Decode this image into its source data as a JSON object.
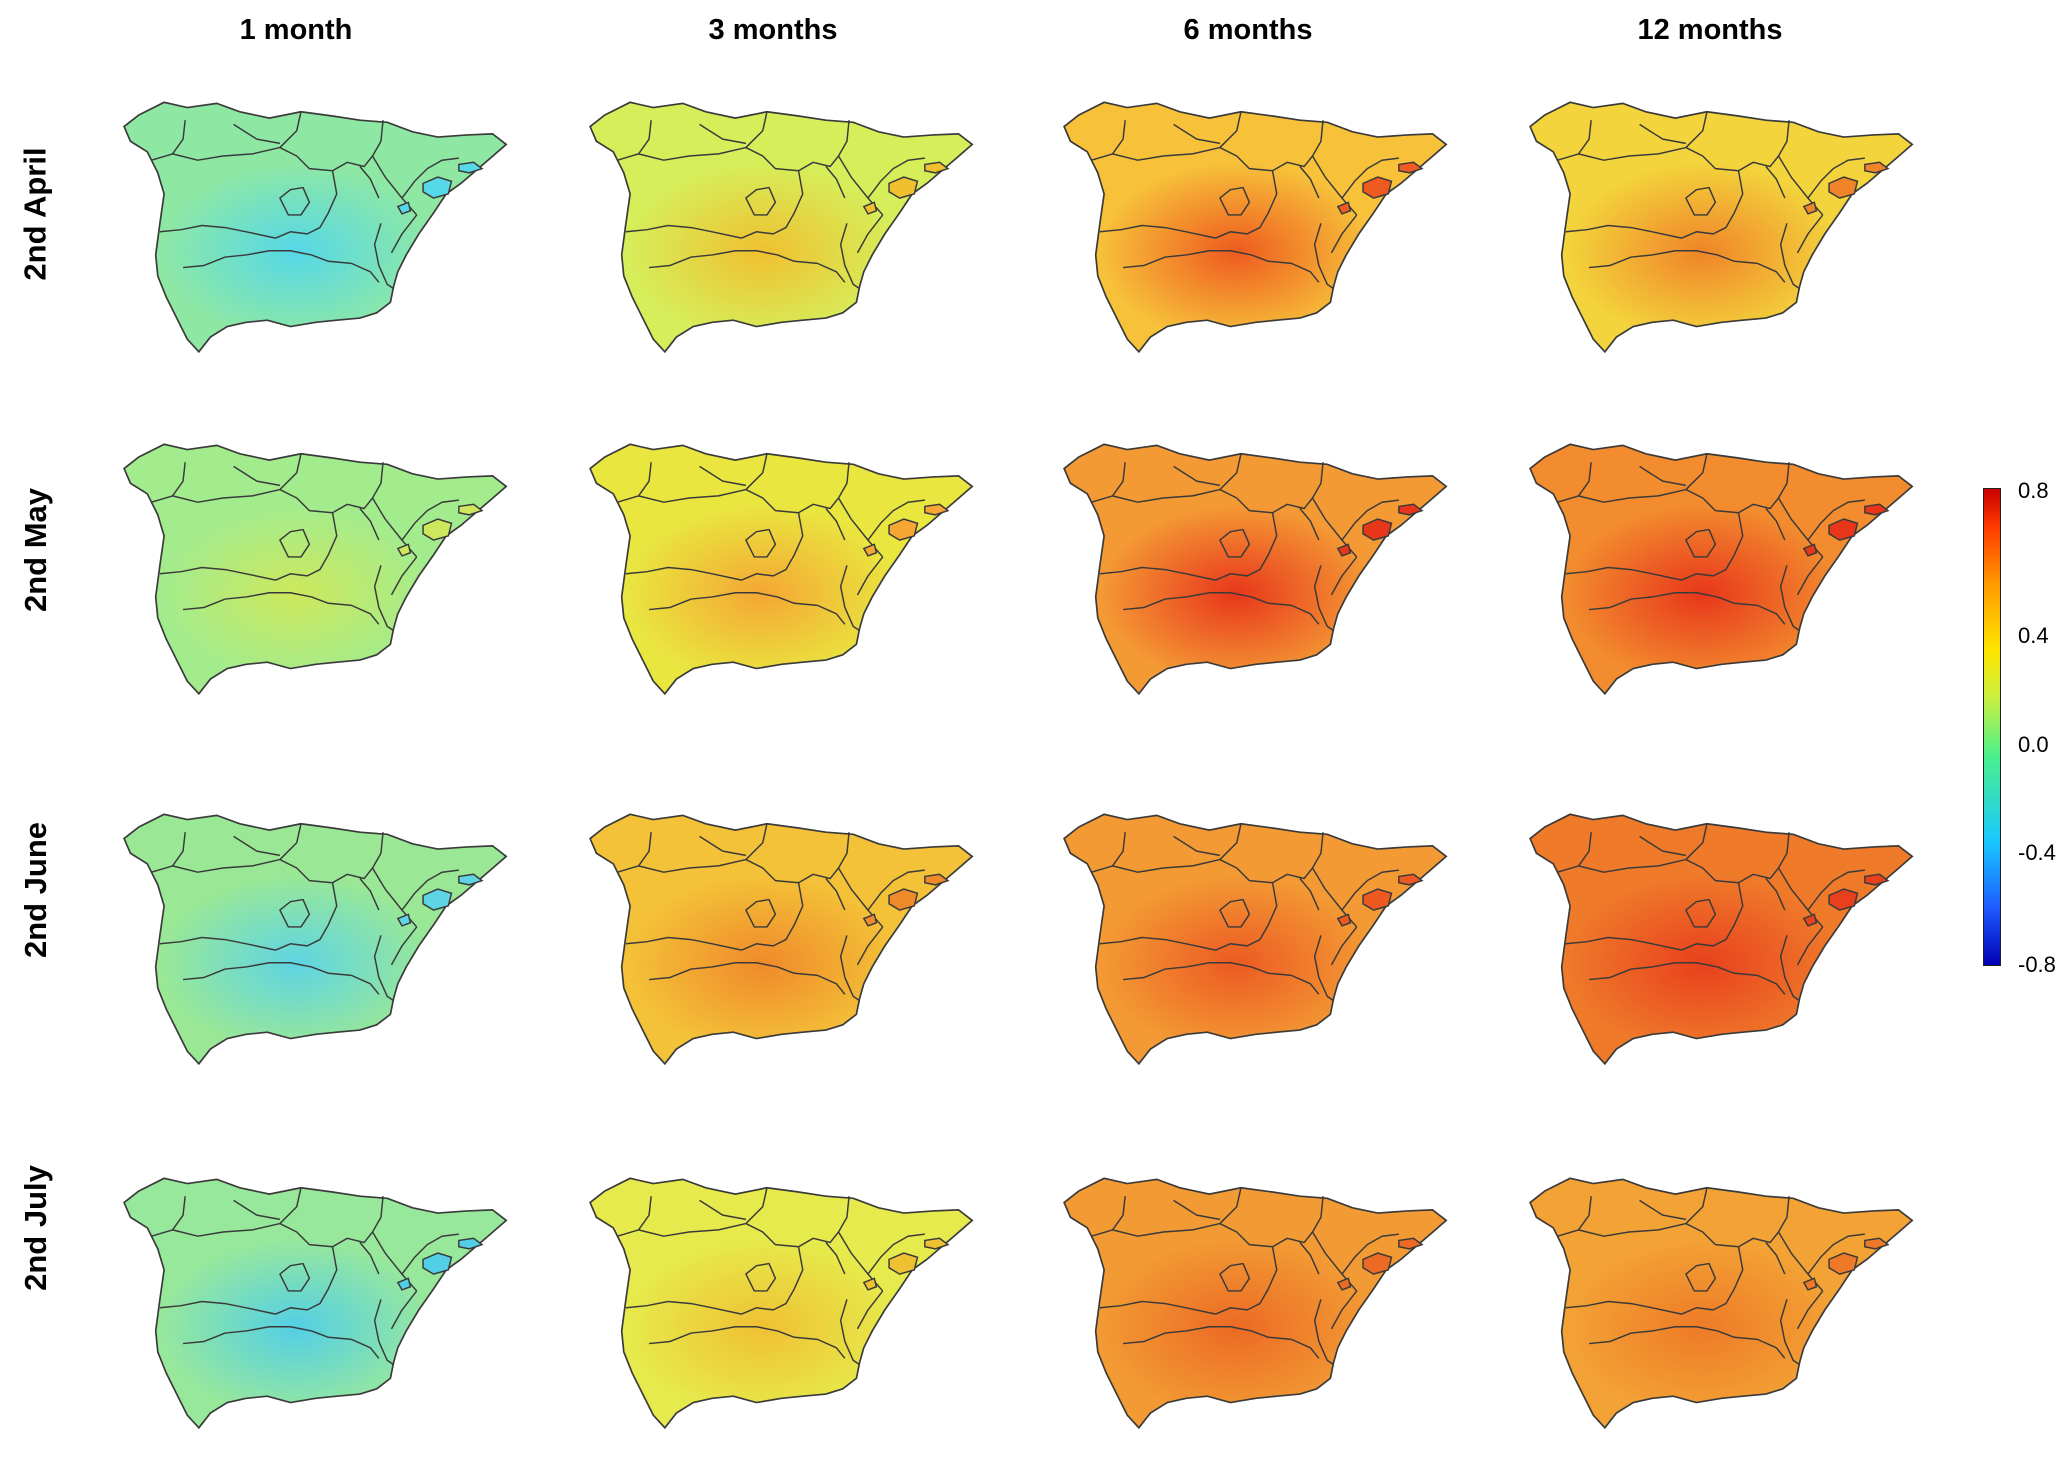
{
  "columns": [
    "1 month",
    "3 months",
    "6 months",
    "12 months"
  ],
  "rows": [
    "2nd April",
    "2nd May",
    "2nd June",
    "2nd July"
  ],
  "colorbar": {
    "ticks": [
      "0.8",
      "0.4",
      "0.0",
      "-0.4",
      "-0.8"
    ],
    "colors": [
      "#c80000",
      "#ff3a00",
      "#ff9a00",
      "#ffe600",
      "#c9f040",
      "#4bf08c",
      "#19c8ff",
      "#1e5bff",
      "#0000b4"
    ]
  },
  "panels": [
    [
      {
        "fill": "#8ee8a4",
        "tint": "#55d8e8"
      },
      {
        "fill": "#d6ee5a",
        "tint": "#f0c030"
      },
      {
        "fill": "#f7c13a",
        "tint": "#ee5a1f"
      },
      {
        "fill": "#f3d43c",
        "tint": "#f08428"
      }
    ],
    [
      {
        "fill": "#a3ec8e",
        "tint": "#cde85c"
      },
      {
        "fill": "#e9e640",
        "tint": "#f5a633"
      },
      {
        "fill": "#f49a35",
        "tint": "#e8361b"
      },
      {
        "fill": "#f28c2e",
        "tint": "#e8361b"
      }
    ],
    [
      {
        "fill": "#9ae896",
        "tint": "#5ed4e4"
      },
      {
        "fill": "#f4c238",
        "tint": "#ef8a2a"
      },
      {
        "fill": "#f39a34",
        "tint": "#ec5a22"
      },
      {
        "fill": "#ef7a2a",
        "tint": "#e8401d"
      }
    ],
    [
      {
        "fill": "#98e89c",
        "tint": "#52cfe6"
      },
      {
        "fill": "#e6ea4c",
        "tint": "#f0c033"
      },
      {
        "fill": "#f29a34",
        "tint": "#ec6a24"
      },
      {
        "fill": "#f3a235",
        "tint": "#ee7a27"
      }
    ]
  ]
}
